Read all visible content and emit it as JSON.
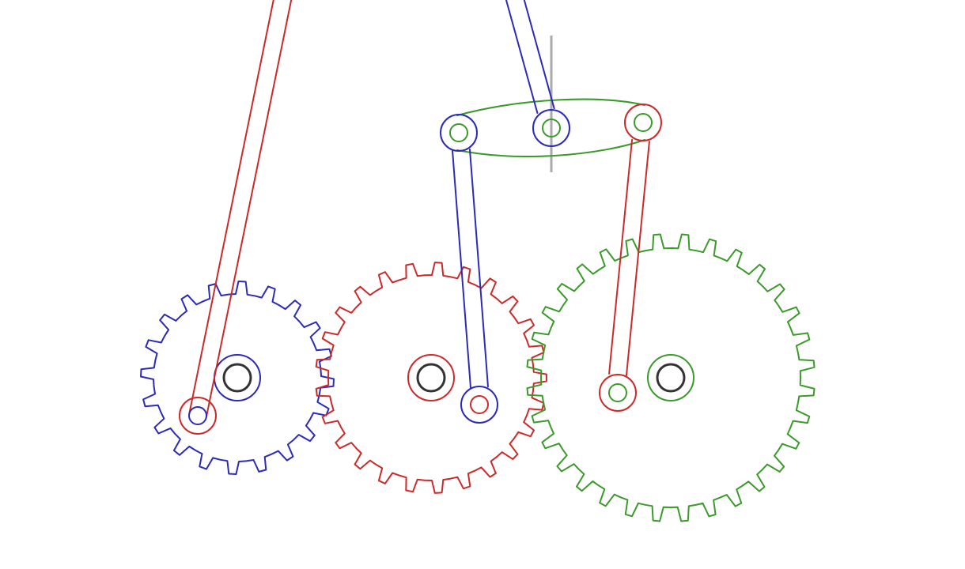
{
  "colors": {
    "blue": "#2b2bb8",
    "red": "#cc2a2a",
    "green": "#3a9a2a",
    "axle": "#333333",
    "guide": "#aaaaaa",
    "background": "#ffffff"
  },
  "gears": [
    {
      "name": "small-gear",
      "color_key": "blue",
      "teeth": 20
    },
    {
      "name": "medium-gear",
      "color_key": "red",
      "teeth": 25
    },
    {
      "name": "large-gear",
      "color_key": "green",
      "teeth": 32
    }
  ],
  "rods": [
    {
      "name": "left-crank-rod",
      "color_key": "red"
    },
    {
      "name": "top-drive-rod",
      "color_key": "blue"
    },
    {
      "name": "middle-connecting-rod",
      "color_key": "blue"
    },
    {
      "name": "right-connecting-rod",
      "color_key": "red"
    }
  ],
  "coupler_link": {
    "name": "coupler-link",
    "color_key": "green"
  },
  "icons": [
    "gear-icon",
    "pivot-joint-icon",
    "axle-icon",
    "vertical-guide-icon"
  ]
}
